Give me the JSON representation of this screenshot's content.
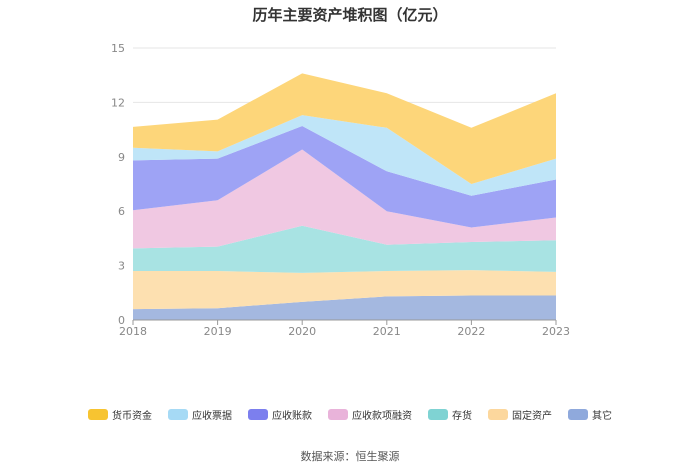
{
  "chart_data": {
    "type": "area",
    "stacked": true,
    "title": "历年主要资产堆积图（亿元）",
    "x": [
      "2018",
      "2019",
      "2020",
      "2021",
      "2022",
      "2023"
    ],
    "ylim": [
      0,
      15
    ],
    "yticks": [
      "0",
      "3",
      "6",
      "9",
      "12",
      "15"
    ],
    "grid": true,
    "legend_position": "bottom",
    "source": "数据来源：恒生聚源",
    "series": [
      {
        "name": "其它",
        "color": "#a4b8e0",
        "values": [
          0.6,
          0.65,
          1.0,
          1.3,
          1.35,
          1.35
        ]
      },
      {
        "name": "固定资产",
        "color": "#fde0b0",
        "values": [
          2.1,
          2.05,
          1.6,
          1.4,
          1.4,
          1.3
        ]
      },
      {
        "name": "存货",
        "color": "#a8e3e3",
        "values": [
          1.25,
          1.35,
          2.6,
          1.45,
          1.55,
          1.75
        ]
      },
      {
        "name": "应收款项融资",
        "color": "#f0c8e2",
        "values": [
          2.1,
          2.55,
          4.2,
          1.85,
          0.8,
          1.25
        ]
      },
      {
        "name": "应收账款",
        "color": "#9ea3f5",
        "values": [
          2.75,
          2.3,
          1.3,
          2.2,
          1.75,
          2.1
        ]
      },
      {
        "name": "应收票据",
        "color": "#bfe5f8",
        "values": [
          0.7,
          0.4,
          0.6,
          2.4,
          0.65,
          1.15
        ]
      },
      {
        "name": "货币资金",
        "color": "#fdd67a",
        "values": [
          1.15,
          1.75,
          2.3,
          1.9,
          3.1,
          3.6
        ]
      }
    ]
  },
  "legend_order": [
    "货币资金",
    "应收票据",
    "应收账款",
    "应收款项融资",
    "存货",
    "固定资产",
    "其它"
  ],
  "legend_colors": {
    "货币资金": "#f7c431",
    "应收票据": "#a6daf5",
    "应收账款": "#7c7fee",
    "应收款项融资": "#e9b3da",
    "存货": "#7fd3d3",
    "固定资产": "#fcd79d",
    "其它": "#8fa9dc"
  }
}
